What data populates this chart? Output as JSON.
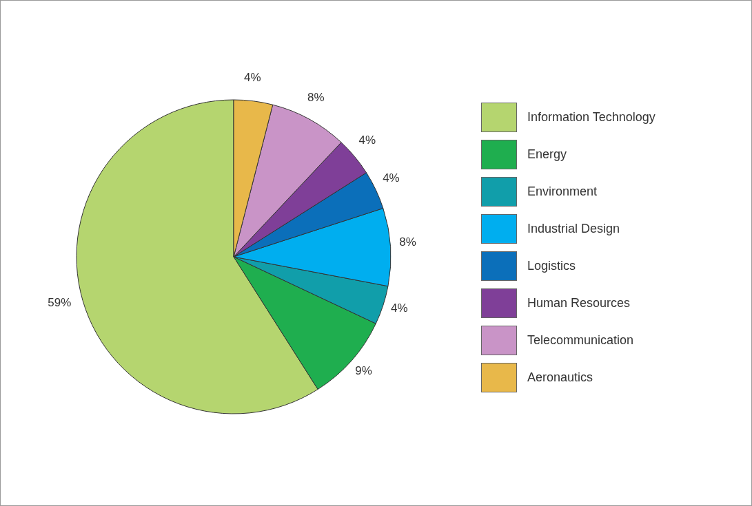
{
  "chart_data": {
    "type": "pie",
    "categories": [
      "Information Technology",
      "Energy",
      "Environment",
      "Industrial Design",
      "Logistics",
      "Human Resources",
      "Telecommunication",
      "Aeronautics"
    ],
    "values": [
      59,
      9,
      4,
      8,
      4,
      4,
      8,
      4
    ],
    "colors": [
      "#b5d56f",
      "#1fae4f",
      "#119eaa",
      "#00aeef",
      "#0b6fba",
      "#7f3f98",
      "#c994c7",
      "#e8b84a"
    ],
    "value_labels": [
      "59%",
      "9%",
      "4%",
      "8%",
      "4%",
      "4%",
      "8%",
      "4%"
    ],
    "legend": "right"
  }
}
